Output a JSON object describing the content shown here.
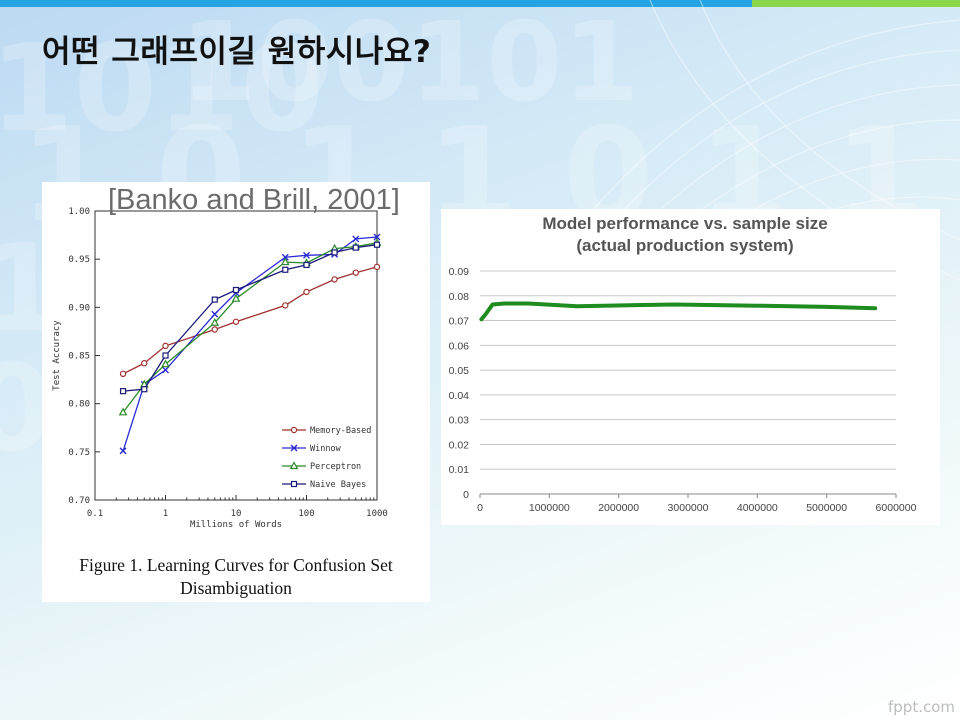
{
  "slide": {
    "title": "어떤 그래프이길 원하시나요?",
    "footer": "fppt.com",
    "colors": {
      "top_bar_blue": "#25a4e3",
      "top_bar_green": "#8bd64a"
    }
  },
  "left_figure": {
    "citation": "[Banko and Brill, 2001]",
    "caption_lines": [
      "Figure 1. Learning Curves for Confusion Set",
      "Disambiguation"
    ]
  },
  "chart_data": [
    {
      "type": "line",
      "title": "",
      "xlabel": "Millions of Words",
      "ylabel": "Test Accuracy",
      "x_scale": "log",
      "xlim": [
        0.1,
        1000
      ],
      "ylim": [
        0.7,
        1.0
      ],
      "x_ticks": [
        "0.1",
        "1",
        "10",
        "100",
        "1000"
      ],
      "y_ticks": [
        "0.70",
        "0.75",
        "0.80",
        "0.85",
        "0.90",
        "0.95",
        "1.00"
      ],
      "grid": false,
      "legend_position": "bottom-right",
      "series": [
        {
          "name": "Memory-Based",
          "color": "#a03030",
          "marker": "circle",
          "points": [
            [
              0.25,
              0.831
            ],
            [
              0.5,
              0.842
            ],
            [
              1,
              0.86
            ],
            [
              5,
              0.877
            ],
            [
              10,
              0.885
            ],
            [
              50,
              0.902
            ],
            [
              100,
              0.916
            ],
            [
              250,
              0.929
            ],
            [
              500,
              0.936
            ],
            [
              1000,
              0.942
            ]
          ]
        },
        {
          "name": "Winnow",
          "color": "#2a2ad6",
          "marker": "x",
          "points": [
            [
              0.25,
              0.751
            ],
            [
              0.5,
              0.82
            ],
            [
              1,
              0.835
            ],
            [
              5,
              0.893
            ],
            [
              10,
              0.915
            ],
            [
              50,
              0.952
            ],
            [
              100,
              0.954
            ],
            [
              250,
              0.955
            ],
            [
              500,
              0.971
            ],
            [
              1000,
              0.973
            ]
          ]
        },
        {
          "name": "Perceptron",
          "color": "#2a8a2a",
          "marker": "triangle",
          "points": [
            [
              0.25,
              0.791
            ],
            [
              0.5,
              0.82
            ],
            [
              1,
              0.841
            ],
            [
              5,
              0.884
            ],
            [
              10,
              0.909
            ],
            [
              50,
              0.947
            ],
            [
              100,
              0.946
            ],
            [
              250,
              0.961
            ],
            [
              500,
              0.963
            ],
            [
              1000,
              0.967
            ]
          ]
        },
        {
          "name": "Naive Bayes",
          "color": "#1a1a7a",
          "marker": "square",
          "points": [
            [
              0.25,
              0.813
            ],
            [
              0.5,
              0.815
            ],
            [
              1,
              0.85
            ],
            [
              5,
              0.908
            ],
            [
              10,
              0.918
            ],
            [
              50,
              0.939
            ],
            [
              100,
              0.944
            ],
            [
              250,
              0.957
            ],
            [
              500,
              0.962
            ],
            [
              1000,
              0.965
            ]
          ]
        }
      ]
    },
    {
      "type": "line",
      "title": "Model performance vs. sample size\n(actual production system)",
      "title_lines": [
        "Model performance vs. sample size",
        "(actual production system)"
      ],
      "xlabel": "",
      "ylabel": "",
      "xlim": [
        0,
        6000000
      ],
      "ylim": [
        0,
        0.09
      ],
      "x_ticks": [
        "0",
        "1000000",
        "2000000",
        "3000000",
        "4000000",
        "5000000",
        "6000000"
      ],
      "y_ticks": [
        "0",
        "0.01",
        "0.02",
        "0.03",
        "0.04",
        "0.05",
        "0.06",
        "0.07",
        "0.08",
        "0.09"
      ],
      "grid": true,
      "series": [
        {
          "color": "#1e8c1e",
          "points": [
            [
              20000,
              0.0705
            ],
            [
              80000,
              0.0725
            ],
            [
              180000,
              0.0765
            ],
            [
              350000,
              0.0769
            ],
            [
              700000,
              0.0769
            ],
            [
              1400000,
              0.0758
            ],
            [
              2800000,
              0.0765
            ],
            [
              4000000,
              0.076
            ],
            [
              5000000,
              0.0755
            ],
            [
              5700000,
              0.075
            ]
          ]
        }
      ]
    }
  ]
}
